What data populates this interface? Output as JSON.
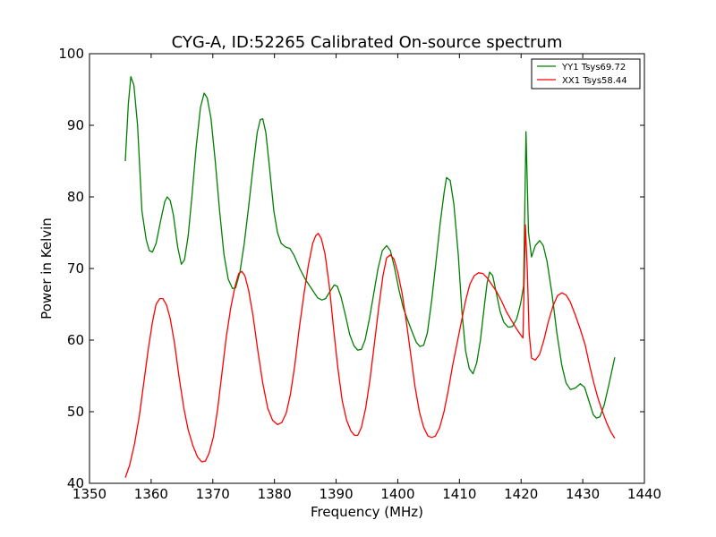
{
  "chart_data": {
    "type": "line",
    "title": "CYG-A, ID:52265 Calibrated On-source spectrum",
    "xlabel": "Frequency (MHz)",
    "ylabel": "Power in Kelvin",
    "xlim": [
      1350,
      1440
    ],
    "ylim": [
      40,
      100
    ],
    "xticks": [
      1350,
      1360,
      1370,
      1380,
      1390,
      1400,
      1410,
      1420,
      1430,
      1440
    ],
    "yticks": [
      40,
      50,
      60,
      70,
      80,
      90,
      100
    ],
    "grid": false,
    "legend_position": "top-right",
    "series": [
      {
        "name": "YY1 Tsys69.72",
        "color": "#008000",
        "points": [
          [
            1355.8,
            85.0
          ],
          [
            1356.3,
            93.0
          ],
          [
            1356.7,
            96.8
          ],
          [
            1357.2,
            95.6
          ],
          [
            1357.8,
            90.0
          ],
          [
            1358.5,
            78.0
          ],
          [
            1359.2,
            74.0
          ],
          [
            1359.7,
            72.5
          ],
          [
            1360.2,
            72.3
          ],
          [
            1360.8,
            73.5
          ],
          [
            1361.5,
            76.5
          ],
          [
            1362.2,
            79.3
          ],
          [
            1362.6,
            80.0
          ],
          [
            1363.1,
            79.5
          ],
          [
            1363.6,
            77.5
          ],
          [
            1364.3,
            73.0
          ],
          [
            1364.9,
            70.6
          ],
          [
            1365.4,
            71.2
          ],
          [
            1366.0,
            74.5
          ],
          [
            1366.6,
            80.0
          ],
          [
            1367.3,
            87.0
          ],
          [
            1368.0,
            92.5
          ],
          [
            1368.6,
            94.5
          ],
          [
            1369.1,
            93.8
          ],
          [
            1369.7,
            91.0
          ],
          [
            1370.4,
            85.0
          ],
          [
            1371.1,
            78.0
          ],
          [
            1371.8,
            72.0
          ],
          [
            1372.5,
            68.5
          ],
          [
            1373.2,
            67.2
          ],
          [
            1373.7,
            67.3
          ],
          [
            1374.4,
            69.5
          ],
          [
            1375.1,
            73.5
          ],
          [
            1375.8,
            78.5
          ],
          [
            1376.5,
            84.0
          ],
          [
            1377.2,
            89.0
          ],
          [
            1377.7,
            90.8
          ],
          [
            1378.1,
            90.9
          ],
          [
            1378.6,
            89.0
          ],
          [
            1379.2,
            84.0
          ],
          [
            1379.9,
            78.0
          ],
          [
            1380.5,
            75.0
          ],
          [
            1381.1,
            73.5
          ],
          [
            1381.8,
            73.0
          ],
          [
            1382.5,
            72.8
          ],
          [
            1383.2,
            71.8
          ],
          [
            1384.1,
            70.0
          ],
          [
            1385.0,
            68.5
          ],
          [
            1386.0,
            67.2
          ],
          [
            1387.0,
            65.9
          ],
          [
            1387.7,
            65.6
          ],
          [
            1388.3,
            65.8
          ],
          [
            1389.0,
            66.8
          ],
          [
            1389.7,
            67.7
          ],
          [
            1390.2,
            67.5
          ],
          [
            1390.8,
            66.0
          ],
          [
            1391.5,
            63.5
          ],
          [
            1392.2,
            60.8
          ],
          [
            1392.9,
            59.2
          ],
          [
            1393.5,
            58.6
          ],
          [
            1394.1,
            58.7
          ],
          [
            1394.7,
            60.0
          ],
          [
            1395.4,
            63.0
          ],
          [
            1396.1,
            66.5
          ],
          [
            1396.8,
            70.0
          ],
          [
            1397.5,
            72.5
          ],
          [
            1398.2,
            73.2
          ],
          [
            1398.8,
            72.5
          ],
          [
            1399.5,
            70.0
          ],
          [
            1400.2,
            67.0
          ],
          [
            1400.9,
            64.5
          ],
          [
            1401.6,
            62.8
          ],
          [
            1402.3,
            61.2
          ],
          [
            1403.0,
            59.7
          ],
          [
            1403.6,
            59.1
          ],
          [
            1404.2,
            59.3
          ],
          [
            1404.8,
            61.0
          ],
          [
            1405.5,
            65.5
          ],
          [
            1406.2,
            71.0
          ],
          [
            1406.9,
            76.5
          ],
          [
            1407.5,
            80.5
          ],
          [
            1407.9,
            82.7
          ],
          [
            1408.5,
            82.3
          ],
          [
            1409.1,
            79.0
          ],
          [
            1409.8,
            72.0
          ],
          [
            1410.4,
            64.0
          ],
          [
            1411.0,
            58.5
          ],
          [
            1411.6,
            56.0
          ],
          [
            1412.2,
            55.3
          ],
          [
            1412.8,
            56.8
          ],
          [
            1413.4,
            60.0
          ],
          [
            1414.0,
            64.5
          ],
          [
            1414.5,
            68.0
          ],
          [
            1414.9,
            69.5
          ],
          [
            1415.4,
            69.0
          ],
          [
            1416.0,
            66.5
          ],
          [
            1416.6,
            64.0
          ],
          [
            1417.2,
            62.5
          ],
          [
            1417.9,
            61.8
          ],
          [
            1418.6,
            61.9
          ],
          [
            1419.3,
            63.0
          ],
          [
            1419.9,
            65.0
          ],
          [
            1420.4,
            67.5
          ],
          [
            1420.8,
            89.1
          ],
          [
            1421.2,
            75.0
          ],
          [
            1421.7,
            71.6
          ],
          [
            1422.3,
            73.2
          ],
          [
            1423.0,
            73.9
          ],
          [
            1423.6,
            73.2
          ],
          [
            1424.2,
            71.0
          ],
          [
            1425.0,
            66.5
          ],
          [
            1425.8,
            61.0
          ],
          [
            1426.6,
            56.5
          ],
          [
            1427.3,
            54.0
          ],
          [
            1428.0,
            53.1
          ],
          [
            1428.8,
            53.3
          ],
          [
            1429.6,
            53.9
          ],
          [
            1430.3,
            53.4
          ],
          [
            1431.0,
            51.5
          ],
          [
            1431.7,
            49.6
          ],
          [
            1432.2,
            49.1
          ],
          [
            1432.8,
            49.3
          ],
          [
            1433.5,
            51.0
          ],
          [
            1434.3,
            54.0
          ],
          [
            1435.2,
            57.6
          ]
        ]
      },
      {
        "name": "XX1 Tsys58.44",
        "color": "#ff0000",
        "points": [
          [
            1355.8,
            40.8
          ],
          [
            1356.5,
            42.5
          ],
          [
            1357.3,
            45.5
          ],
          [
            1358.1,
            49.5
          ],
          [
            1358.8,
            54.0
          ],
          [
            1359.5,
            58.5
          ],
          [
            1360.2,
            62.5
          ],
          [
            1360.8,
            65.0
          ],
          [
            1361.4,
            65.8
          ],
          [
            1361.9,
            65.8
          ],
          [
            1362.5,
            64.9
          ],
          [
            1363.1,
            63.0
          ],
          [
            1363.8,
            59.5
          ],
          [
            1364.5,
            55.0
          ],
          [
            1365.3,
            50.5
          ],
          [
            1366.0,
            47.5
          ],
          [
            1366.8,
            45.2
          ],
          [
            1367.5,
            43.7
          ],
          [
            1368.2,
            43.0
          ],
          [
            1368.8,
            43.1
          ],
          [
            1369.4,
            44.2
          ],
          [
            1370.1,
            46.5
          ],
          [
            1370.8,
            50.5
          ],
          [
            1371.5,
            55.5
          ],
          [
            1372.2,
            60.5
          ],
          [
            1372.9,
            64.5
          ],
          [
            1373.6,
            67.5
          ],
          [
            1374.2,
            69.3
          ],
          [
            1374.7,
            69.6
          ],
          [
            1375.2,
            69.0
          ],
          [
            1375.8,
            67.0
          ],
          [
            1376.5,
            63.5
          ],
          [
            1377.3,
            58.5
          ],
          [
            1378.1,
            54.0
          ],
          [
            1378.9,
            50.5
          ],
          [
            1379.7,
            48.8
          ],
          [
            1380.5,
            48.2
          ],
          [
            1381.2,
            48.5
          ],
          [
            1381.9,
            49.8
          ],
          [
            1382.6,
            52.5
          ],
          [
            1383.3,
            56.5
          ],
          [
            1384.0,
            61.5
          ],
          [
            1384.8,
            66.5
          ],
          [
            1385.5,
            70.5
          ],
          [
            1386.2,
            73.5
          ],
          [
            1386.7,
            74.6
          ],
          [
            1387.1,
            74.9
          ],
          [
            1387.6,
            74.2
          ],
          [
            1388.2,
            72.0
          ],
          [
            1388.9,
            67.5
          ],
          [
            1389.6,
            61.5
          ],
          [
            1390.3,
            56.0
          ],
          [
            1391.0,
            51.5
          ],
          [
            1391.7,
            48.8
          ],
          [
            1392.4,
            47.3
          ],
          [
            1393.0,
            46.7
          ],
          [
            1393.5,
            46.7
          ],
          [
            1394.1,
            47.8
          ],
          [
            1394.8,
            50.5
          ],
          [
            1395.5,
            54.5
          ],
          [
            1396.2,
            59.5
          ],
          [
            1396.9,
            64.5
          ],
          [
            1397.6,
            69.0
          ],
          [
            1398.2,
            71.5
          ],
          [
            1398.8,
            71.9
          ],
          [
            1399.4,
            71.3
          ],
          [
            1400.0,
            69.5
          ],
          [
            1400.7,
            66.5
          ],
          [
            1401.4,
            62.5
          ],
          [
            1402.1,
            58.0
          ],
          [
            1402.8,
            53.5
          ],
          [
            1403.5,
            50.0
          ],
          [
            1404.2,
            47.8
          ],
          [
            1404.9,
            46.6
          ],
          [
            1405.5,
            46.4
          ],
          [
            1406.1,
            46.6
          ],
          [
            1406.8,
            47.8
          ],
          [
            1407.5,
            50.0
          ],
          [
            1408.2,
            53.0
          ],
          [
            1408.9,
            56.5
          ],
          [
            1409.6,
            59.5
          ],
          [
            1410.3,
            62.5
          ],
          [
            1411.0,
            65.5
          ],
          [
            1411.7,
            67.8
          ],
          [
            1412.4,
            69.0
          ],
          [
            1413.1,
            69.4
          ],
          [
            1413.8,
            69.3
          ],
          [
            1414.5,
            68.7
          ],
          [
            1415.2,
            67.8
          ],
          [
            1416.0,
            66.8
          ],
          [
            1416.8,
            65.5
          ],
          [
            1417.6,
            64.0
          ],
          [
            1418.4,
            62.8
          ],
          [
            1419.1,
            61.8
          ],
          [
            1419.7,
            61.0
          ],
          [
            1420.3,
            60.3
          ],
          [
            1420.7,
            76.1
          ],
          [
            1421.0,
            70.0
          ],
          [
            1421.3,
            61.0
          ],
          [
            1421.7,
            57.5
          ],
          [
            1422.3,
            57.2
          ],
          [
            1423.0,
            58.0
          ],
          [
            1423.7,
            60.0
          ],
          [
            1424.4,
            62.5
          ],
          [
            1425.2,
            64.8
          ],
          [
            1425.9,
            66.2
          ],
          [
            1426.6,
            66.6
          ],
          [
            1427.3,
            66.3
          ],
          [
            1428.0,
            65.3
          ],
          [
            1428.8,
            63.5
          ],
          [
            1429.6,
            61.5
          ],
          [
            1430.4,
            59.3
          ],
          [
            1431.1,
            56.5
          ],
          [
            1431.8,
            54.0
          ],
          [
            1432.5,
            51.8
          ],
          [
            1433.2,
            50.0
          ],
          [
            1433.9,
            48.4
          ],
          [
            1434.6,
            47.1
          ],
          [
            1435.2,
            46.3
          ]
        ]
      }
    ]
  }
}
